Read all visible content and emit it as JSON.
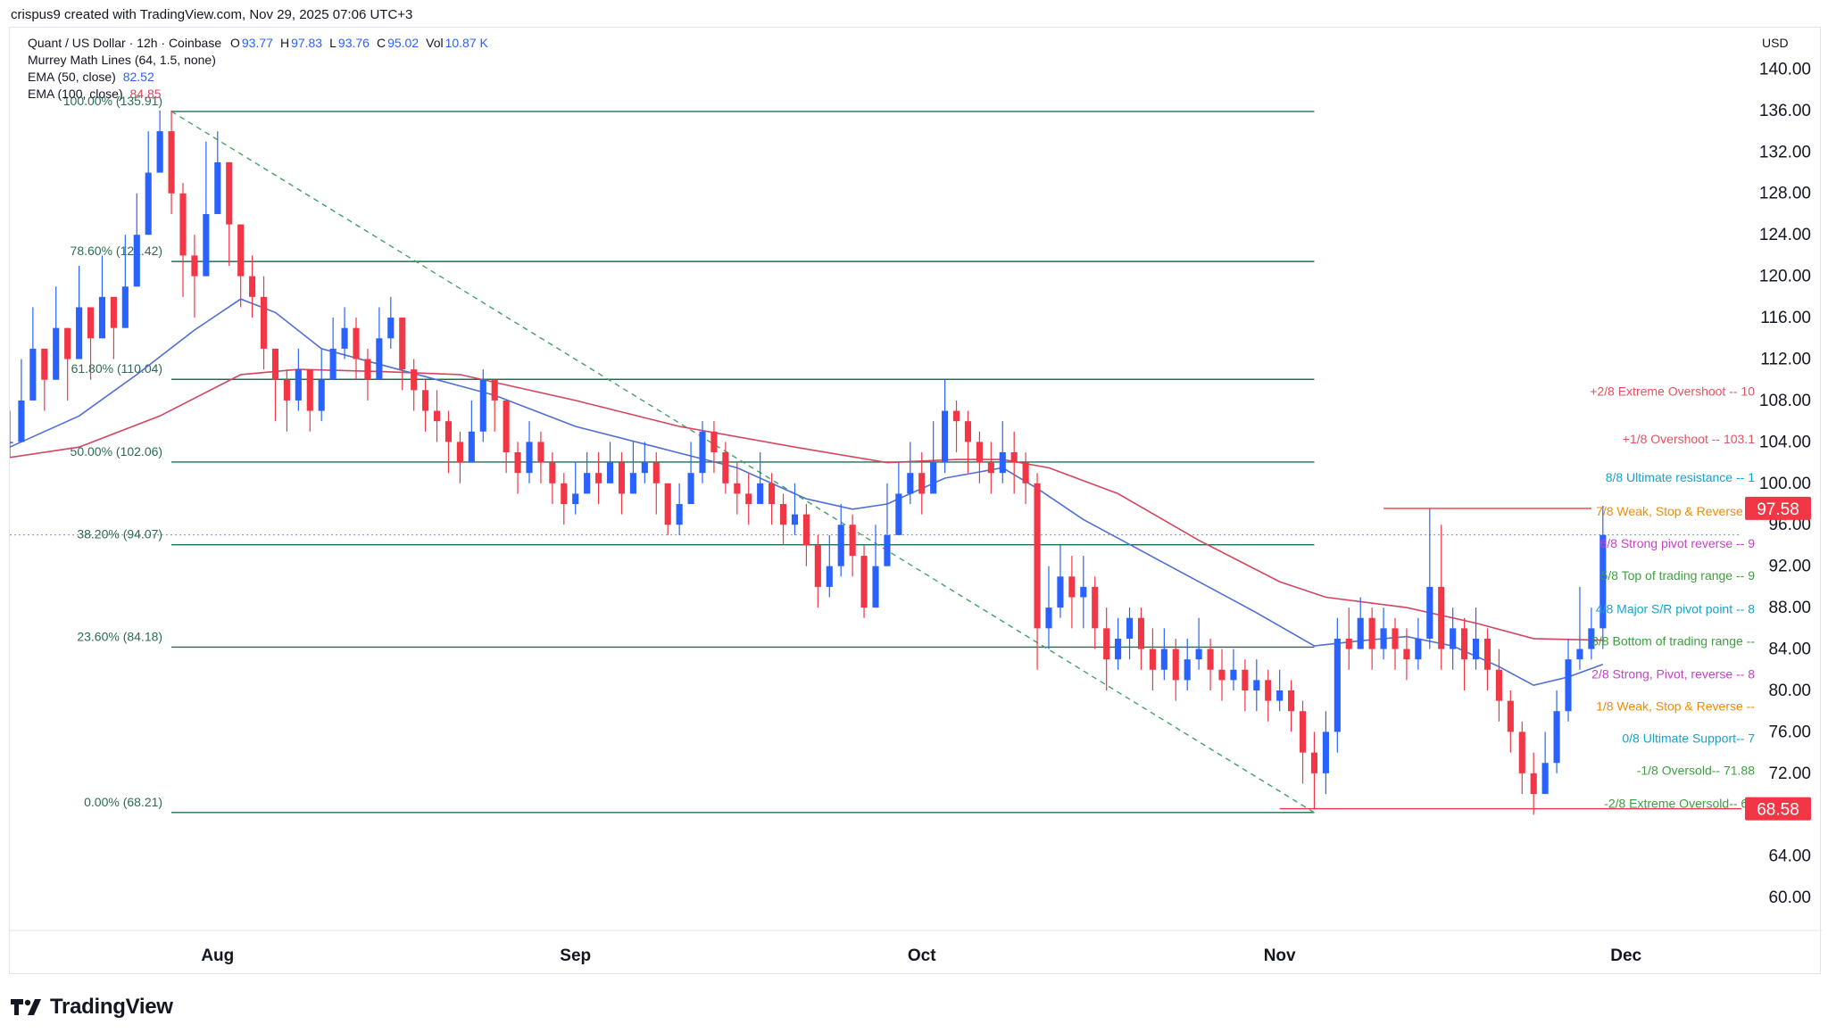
{
  "header": {
    "created_by": "crispus9 created with TradingView.com, Nov 29, 2025 07:06 UTC+3"
  },
  "legend": {
    "symbol": "Quant / US Dollar · 12h · Coinbase",
    "ohlc": [
      {
        "k": "O",
        "v": "93.77"
      },
      {
        "k": "H",
        "v": "97.83"
      },
      {
        "k": "L",
        "v": "93.76"
      },
      {
        "k": "C",
        "v": "95.02"
      },
      {
        "k": "Vol",
        "v": "10.87 K"
      }
    ],
    "murrey": "Murrey Math Lines (64, 1.5, none)",
    "ema50": {
      "label": "EMA (50, close)",
      "value": "82.52"
    },
    "ema100": {
      "label": "EMA (100, close)",
      "value": "84.85"
    }
  },
  "colors": {
    "up": "#2962ff",
    "down": "#f23645",
    "ema50": "#4f6fd6",
    "ema100": "#d6455d",
    "fib": "#1f6f54",
    "trend": "#43a06a",
    "price_tag": "#f23645",
    "text": "#131722",
    "axis_text": "#131722",
    "fib_text": "#2a6b55"
  },
  "branding": {
    "logo_text": "TradingView"
  },
  "chart_data": {
    "type": "candlestick",
    "currency": "USD",
    "y_ticks": [
      60,
      64,
      68,
      72,
      76,
      80,
      84,
      88,
      92,
      96,
      100,
      104,
      108,
      112,
      116,
      120,
      124,
      128,
      132,
      136,
      140
    ],
    "y_tick_labels": [
      "60.00",
      "64.00",
      "68.00",
      "72.00",
      "76.00",
      "80.00",
      "84.00",
      "88.00",
      "92.00",
      "96.00",
      "100.00",
      "104.00",
      "108.00",
      "112.00",
      "116.00",
      "120.00",
      "124.00",
      "128.00",
      "132.00",
      "136.00",
      "140.00"
    ],
    "ylim": [
      57,
      144
    ],
    "x_labels": [
      {
        "label": "Aug",
        "date": "2025-08-01"
      },
      {
        "label": "Sep",
        "date": "2025-09-01"
      },
      {
        "label": "Oct",
        "date": "2025-10-01"
      },
      {
        "label": "Nov",
        "date": "2025-11-01"
      },
      {
        "label": "Dec",
        "date": "2025-12-01"
      }
    ],
    "x_range": [
      "2025-07-14",
      "2025-12-11"
    ],
    "fib_retracement": [
      {
        "label": "100.00% (135.91)",
        "value": 135.91
      },
      {
        "label": "78.60% (121.42)",
        "value": 121.42
      },
      {
        "label": "61.80% (110.04)",
        "value": 110.04
      },
      {
        "label": "50.00% (102.06)",
        "value": 102.06
      },
      {
        "label": "38.20% (94.07)",
        "value": 94.07
      },
      {
        "label": "23.60% (84.18)",
        "value": 84.18
      },
      {
        "label": "0.00% (68.21)",
        "value": 68.21
      }
    ],
    "fib_range": {
      "start": "2025-07-28",
      "end": "2025-11-04"
    },
    "trendline": [
      {
        "date": "2025-07-28",
        "value": 135.91
      },
      {
        "date": "2025-11-04",
        "value": 68.21
      }
    ],
    "horizontal_lines": [
      {
        "value": 97.58,
        "from": "2025-11-10",
        "to": "2025-11-28",
        "color": "#f23645"
      },
      {
        "value": 68.58,
        "from": "2025-11-01",
        "to": "2025-12-11",
        "color": "#f23645"
      }
    ],
    "current_price_line": 95.02,
    "price_tags": [
      {
        "text": "97.58",
        "value": 97.58
      },
      {
        "text": "68.58",
        "value": 68.58
      }
    ],
    "murrey_labels": [
      {
        "text": "+2/8 Extreme Overshoot -- 10",
        "value": 108.9,
        "color": "#e0545f"
      },
      {
        "text": "+1/8 Overshoot -- 103.1",
        "value": 104.3,
        "color": "#e0545f"
      },
      {
        "text": "8/8 Ultimate resistance -- 1",
        "value": 100.6,
        "color": "#17a2c9"
      },
      {
        "text": "7/8 Weak, Stop & Reverse --",
        "value": 97.3,
        "color": "#f08c00"
      },
      {
        "text": "6/8 Strong pivot reverse -- 9",
        "value": 94.2,
        "color": "#c940c9"
      },
      {
        "text": "5/8 Top of trading range -- 9",
        "value": 91.1,
        "color": "#3f9e3f"
      },
      {
        "text": "4/8 Major S/R pivot point -- 8",
        "value": 87.9,
        "color": "#17a2c9"
      },
      {
        "text": "3/8 Bottom of trading range --",
        "value": 84.8,
        "color": "#3f9e3f"
      },
      {
        "text": "2/8 Strong, Pivot, reverse -- 8",
        "value": 81.6,
        "color": "#c940c9"
      },
      {
        "text": "1/8 Weak, Stop & Reverse --",
        "value": 78.5,
        "color": "#f08c00"
      },
      {
        "text": "0/8 Ultimate Support-- 7",
        "value": 75.4,
        "color": "#17a2c9"
      },
      {
        "text": "-1/8 Oversold-- 71.88",
        "value": 72.3,
        "color": "#3f9e3f"
      },
      {
        "text": "-2/8 Extreme Oversold-- 68",
        "value": 69.1,
        "color": "#3f9e3f"
      }
    ],
    "ema50_points": [
      [
        "2025-07-14",
        103.5
      ],
      [
        "2025-07-20",
        106.5
      ],
      [
        "2025-07-25",
        110.5
      ],
      [
        "2025-07-30",
        114.8
      ],
      [
        "2025-08-03",
        117.8
      ],
      [
        "2025-08-06",
        116.5
      ],
      [
        "2025-08-10",
        113.0
      ],
      [
        "2025-08-15",
        111.5
      ],
      [
        "2025-08-20",
        110.0
      ],
      [
        "2025-08-25",
        108.5
      ],
      [
        "2025-09-01",
        105.5
      ],
      [
        "2025-09-08",
        103.5
      ],
      [
        "2025-09-15",
        101.5
      ],
      [
        "2025-09-21",
        98.5
      ],
      [
        "2025-09-25",
        97.5
      ],
      [
        "2025-09-28",
        98.0
      ],
      [
        "2025-10-03",
        100.5
      ],
      [
        "2025-10-08",
        101.5
      ],
      [
        "2025-10-11",
        99.5
      ],
      [
        "2025-10-15",
        96.5
      ],
      [
        "2025-10-20",
        93.5
      ],
      [
        "2025-10-25",
        90.5
      ],
      [
        "2025-10-30",
        87.5
      ],
      [
        "2025-11-04",
        84.3
      ],
      [
        "2025-11-08",
        84.8
      ],
      [
        "2025-11-12",
        85.2
      ],
      [
        "2025-11-16",
        84.3
      ],
      [
        "2025-11-20",
        82.3
      ],
      [
        "2025-11-23",
        80.5
      ],
      [
        "2025-11-26",
        81.3
      ],
      [
        "2025-11-29",
        82.52
      ]
    ],
    "ema100_points": [
      [
        "2025-07-14",
        102.5
      ],
      [
        "2025-07-20",
        103.5
      ],
      [
        "2025-07-27",
        106.5
      ],
      [
        "2025-08-03",
        110.5
      ],
      [
        "2025-08-08",
        111.0
      ],
      [
        "2025-08-15",
        110.8
      ],
      [
        "2025-08-22",
        110.5
      ],
      [
        "2025-09-01",
        108.0
      ],
      [
        "2025-09-10",
        105.5
      ],
      [
        "2025-09-20",
        103.5
      ],
      [
        "2025-09-28",
        102.0
      ],
      [
        "2025-10-04",
        102.3
      ],
      [
        "2025-10-08",
        102.3
      ],
      [
        "2025-10-12",
        101.5
      ],
      [
        "2025-10-18",
        99.0
      ],
      [
        "2025-10-25",
        94.5
      ],
      [
        "2025-11-01",
        90.5
      ],
      [
        "2025-11-05",
        89.0
      ],
      [
        "2025-11-12",
        88.0
      ],
      [
        "2025-11-18",
        86.5
      ],
      [
        "2025-11-23",
        85.0
      ],
      [
        "2025-11-29",
        84.85
      ]
    ],
    "candles_close": [
      [
        "2025-07-14",
        104,
        107,
        102.5
      ],
      [
        "2025-07-15",
        108,
        112,
        105
      ],
      [
        "2025-07-16",
        113,
        117,
        110
      ],
      [
        "2025-07-17",
        110,
        113,
        107
      ],
      [
        "2025-07-18",
        115,
        119,
        112
      ],
      [
        "2025-07-19",
        112,
        115,
        108
      ],
      [
        "2025-07-20",
        117,
        121,
        114
      ],
      [
        "2025-07-21",
        114,
        117,
        110
      ],
      [
        "2025-07-22",
        118,
        122,
        115
      ],
      [
        "2025-07-23",
        115,
        118,
        112
      ],
      [
        "2025-07-24",
        119,
        124,
        116
      ],
      [
        "2025-07-25",
        124,
        128,
        121
      ],
      [
        "2025-07-26",
        130,
        134,
        126
      ],
      [
        "2025-07-27",
        134,
        136,
        130
      ],
      [
        "2025-07-28",
        128,
        136,
        126
      ],
      [
        "2025-07-29",
        122,
        129,
        118
      ],
      [
        "2025-07-30",
        120,
        124,
        116
      ],
      [
        "2025-07-31",
        126,
        133,
        121
      ],
      [
        "2025-08-01",
        131,
        134,
        127
      ],
      [
        "2025-08-02",
        125,
        130,
        121
      ],
      [
        "2025-08-03",
        120,
        125,
        117
      ],
      [
        "2025-08-04",
        118,
        122,
        116
      ],
      [
        "2025-08-05",
        113,
        120,
        111
      ],
      [
        "2025-08-06",
        110,
        113,
        106
      ],
      [
        "2025-08-07",
        108,
        111,
        105
      ],
      [
        "2025-08-08",
        111,
        113,
        107
      ],
      [
        "2025-08-09",
        107,
        110,
        105
      ],
      [
        "2025-08-10",
        110,
        113,
        106
      ],
      [
        "2025-08-11",
        113,
        116,
        110
      ],
      [
        "2025-08-12",
        115,
        117,
        112
      ],
      [
        "2025-08-13",
        112,
        116,
        110
      ],
      [
        "2025-08-14",
        110,
        113,
        108
      ],
      [
        "2025-08-15",
        114,
        117,
        110
      ],
      [
        "2025-08-16",
        116,
        118,
        113
      ],
      [
        "2025-08-17",
        111,
        116,
        109
      ],
      [
        "2025-08-18",
        109,
        112,
        107
      ],
      [
        "2025-08-19",
        107,
        110,
        105
      ],
      [
        "2025-08-20",
        106,
        109,
        104
      ],
      [
        "2025-08-21",
        104,
        107,
        101
      ],
      [
        "2025-08-22",
        102,
        105,
        100
      ],
      [
        "2025-08-23",
        105,
        108,
        102
      ],
      [
        "2025-08-24",
        110,
        111,
        104
      ],
      [
        "2025-08-25",
        108,
        110,
        105
      ],
      [
        "2025-08-26",
        103,
        108,
        101
      ],
      [
        "2025-08-27",
        101,
        104,
        99
      ],
      [
        "2025-08-28",
        104,
        106,
        100
      ],
      [
        "2025-08-29",
        102,
        105,
        100
      ],
      [
        "2025-08-30",
        100,
        103,
        98
      ],
      [
        "2025-08-31",
        98,
        101,
        96
      ],
      [
        "2025-09-01",
        99,
        102,
        97
      ],
      [
        "2025-09-02",
        101,
        103,
        99
      ],
      [
        "2025-09-03",
        100,
        103,
        98
      ],
      [
        "2025-09-04",
        102,
        104,
        100
      ],
      [
        "2025-09-05",
        99,
        103,
        97
      ],
      [
        "2025-09-06",
        101,
        104,
        99
      ],
      [
        "2025-09-07",
        102,
        104,
        100
      ],
      [
        "2025-09-08",
        100,
        103,
        97
      ],
      [
        "2025-09-09",
        96,
        100,
        95
      ],
      [
        "2025-09-10",
        98,
        100,
        95
      ],
      [
        "2025-09-11",
        101,
        104,
        98
      ],
      [
        "2025-09-12",
        105,
        106,
        100
      ],
      [
        "2025-09-13",
        103,
        106,
        101
      ],
      [
        "2025-09-14",
        100,
        104,
        99
      ],
      [
        "2025-09-15",
        99,
        102,
        97
      ],
      [
        "2025-09-16",
        98,
        101,
        96
      ],
      [
        "2025-09-17",
        100,
        103,
        98
      ],
      [
        "2025-09-18",
        98,
        101,
        96
      ],
      [
        "2025-09-19",
        96,
        99,
        94
      ],
      [
        "2025-09-20",
        97,
        100,
        95
      ],
      [
        "2025-09-21",
        94,
        98,
        92
      ],
      [
        "2025-09-22",
        90,
        95,
        88
      ],
      [
        "2025-09-23",
        92,
        95,
        89
      ],
      [
        "2025-09-24",
        96,
        98,
        91
      ],
      [
        "2025-09-25",
        93,
        97,
        91
      ],
      [
        "2025-09-26",
        88,
        94,
        87
      ],
      [
        "2025-09-27",
        92,
        96,
        88
      ],
      [
        "2025-09-28",
        95,
        100,
        92
      ],
      [
        "2025-09-29",
        99,
        102,
        95
      ],
      [
        "2025-09-30",
        101,
        104,
        98
      ],
      [
        "2025-10-01",
        99,
        103,
        97
      ],
      [
        "2025-10-02",
        102,
        106,
        99
      ],
      [
        "2025-10-03",
        107,
        110,
        101
      ],
      [
        "2025-10-04",
        106,
        108,
        103
      ],
      [
        "2025-10-05",
        104,
        107,
        101
      ],
      [
        "2025-10-06",
        102,
        105,
        100
      ],
      [
        "2025-10-07",
        101,
        104,
        99
      ],
      [
        "2025-10-08",
        103,
        106,
        100
      ],
      [
        "2025-10-09",
        102,
        105,
        99
      ],
      [
        "2025-10-10",
        100,
        103,
        98
      ],
      [
        "2025-10-11",
        86,
        101,
        82
      ],
      [
        "2025-10-12",
        88,
        92,
        84
      ],
      [
        "2025-10-13",
        91,
        94,
        87
      ],
      [
        "2025-10-14",
        89,
        93,
        86
      ],
      [
        "2025-10-15",
        90,
        93,
        86
      ],
      [
        "2025-10-16",
        86,
        91,
        84
      ],
      [
        "2025-10-17",
        83,
        88,
        80
      ],
      [
        "2025-10-18",
        85,
        87,
        82
      ],
      [
        "2025-10-19",
        87,
        88,
        83
      ],
      [
        "2025-10-20",
        84,
        88,
        82
      ],
      [
        "2025-10-21",
        82,
        86,
        80
      ],
      [
        "2025-10-22",
        84,
        86,
        81
      ],
      [
        "2025-10-23",
        81,
        85,
        79
      ],
      [
        "2025-10-24",
        83,
        85,
        80
      ],
      [
        "2025-10-25",
        84,
        87,
        82
      ],
      [
        "2025-10-26",
        82,
        85,
        80
      ],
      [
        "2025-10-27",
        81,
        84,
        79
      ],
      [
        "2025-10-28",
        82,
        84,
        80
      ],
      [
        "2025-10-29",
        80,
        83,
        78
      ],
      [
        "2025-10-30",
        81,
        83,
        78
      ],
      [
        "2025-10-31",
        79,
        82,
        77
      ],
      [
        "2025-11-01",
        80,
        82,
        78
      ],
      [
        "2025-11-02",
        78,
        81,
        76
      ],
      [
        "2025-11-03",
        74,
        79,
        71
      ],
      [
        "2025-11-04",
        72,
        76,
        68.5
      ],
      [
        "2025-11-05",
        76,
        78,
        70
      ],
      [
        "2025-11-06",
        85,
        87,
        74
      ],
      [
        "2025-11-07",
        84,
        88,
        82
      ],
      [
        "2025-11-08",
        87,
        89,
        84
      ],
      [
        "2025-11-09",
        84,
        88,
        82
      ],
      [
        "2025-11-10",
        86,
        88,
        83
      ],
      [
        "2025-11-11",
        84,
        87,
        82
      ],
      [
        "2025-11-12",
        83,
        86,
        81
      ],
      [
        "2025-11-13",
        85,
        87,
        82
      ],
      [
        "2025-11-14",
        90,
        97.58,
        84
      ],
      [
        "2025-11-15",
        84,
        96,
        82
      ],
      [
        "2025-11-16",
        86,
        88,
        82
      ],
      [
        "2025-11-17",
        83,
        87,
        80
      ],
      [
        "2025-11-18",
        85,
        88,
        82
      ],
      [
        "2025-11-19",
        82,
        86,
        80
      ],
      [
        "2025-11-20",
        79,
        84,
        77
      ],
      [
        "2025-11-21",
        76,
        80,
        74
      ],
      [
        "2025-11-22",
        72,
        77,
        70
      ],
      [
        "2025-11-23",
        70,
        74,
        68
      ],
      [
        "2025-11-24",
        73,
        76,
        70
      ],
      [
        "2025-11-25",
        78,
        80,
        72
      ],
      [
        "2025-11-26",
        83,
        85,
        77
      ],
      [
        "2025-11-27",
        84,
        90,
        82
      ],
      [
        "2025-11-28",
        86,
        88,
        83
      ],
      [
        "2025-11-29",
        95.02,
        97.83,
        84
      ]
    ]
  }
}
